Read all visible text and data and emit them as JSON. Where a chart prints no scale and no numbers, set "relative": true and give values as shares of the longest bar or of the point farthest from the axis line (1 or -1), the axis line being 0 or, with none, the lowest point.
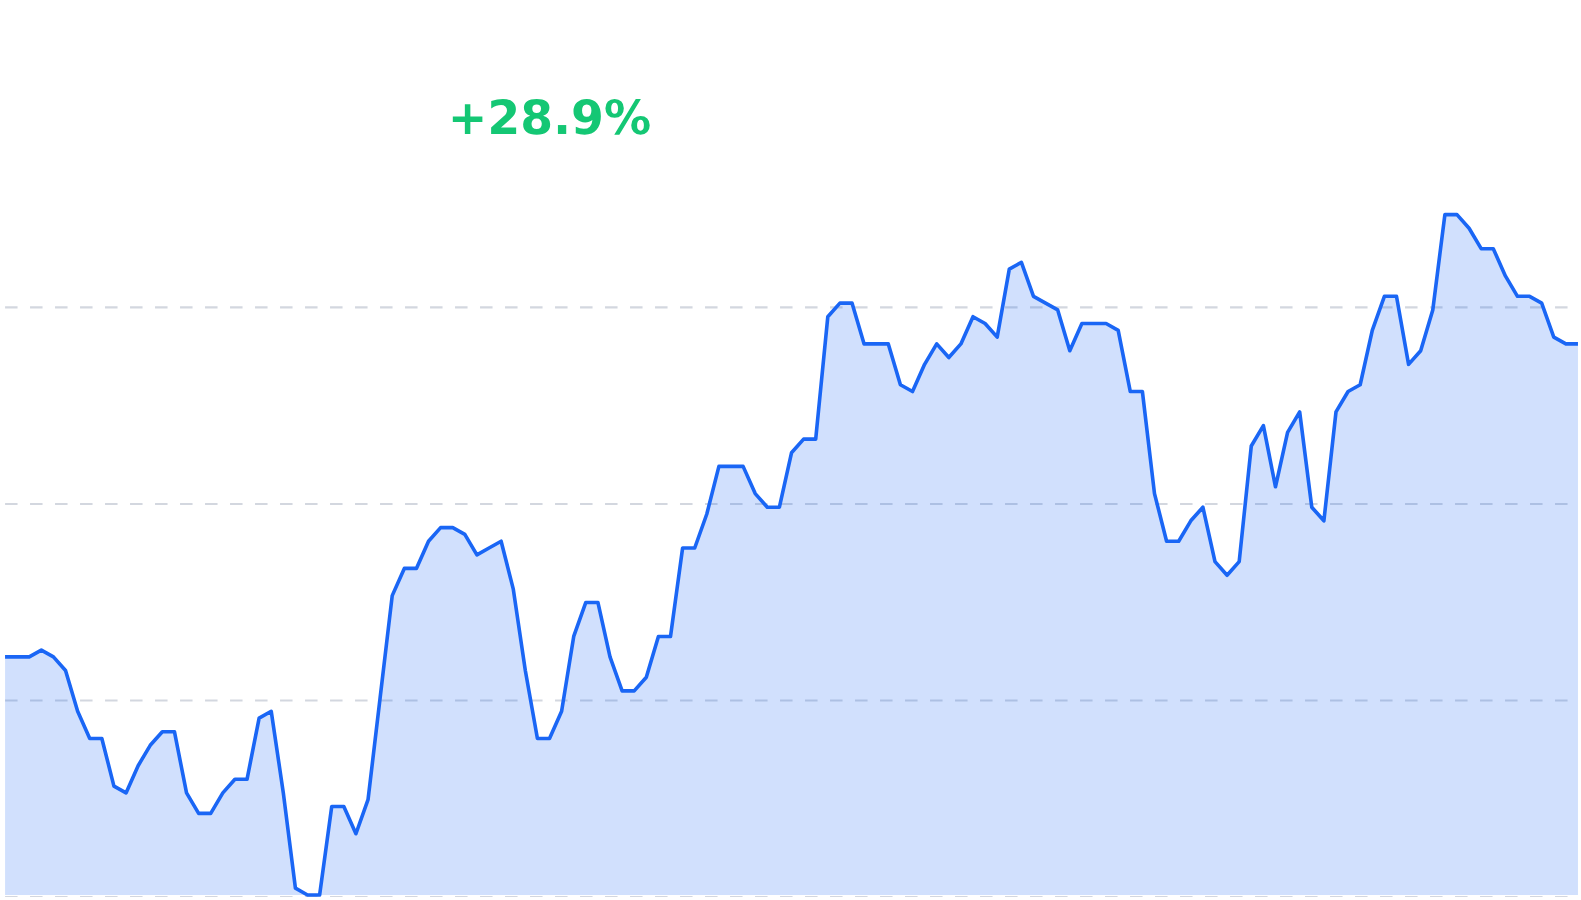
{
  "chart_data": {
    "type": "area",
    "relative": true,
    "grid": "y",
    "line_style": "solid",
    "marker": "none",
    "annotations": [
      "+28.9%"
    ],
    "categories": [
      null,
      null,
      null,
      null,
      null,
      null,
      null,
      null,
      null,
      null,
      null,
      null,
      null,
      null,
      null,
      null,
      null,
      null,
      null,
      null,
      null,
      null,
      null,
      null,
      null,
      null,
      null,
      null,
      null,
      null,
      null,
      null,
      null,
      null,
      null,
      null,
      null,
      null,
      null,
      null,
      null,
      null,
      null,
      null,
      null,
      null,
      null,
      null,
      null,
      null,
      null,
      null,
      null,
      null,
      null,
      null,
      null,
      null,
      null,
      null,
      null,
      null,
      null,
      null,
      null,
      null,
      null,
      null,
      null,
      null,
      null,
      null,
      null,
      null,
      null,
      null,
      null,
      null,
      null,
      null,
      null,
      null,
      null,
      null,
      null,
      null,
      null,
      null,
      null,
      null,
      null,
      null,
      null,
      null,
      null,
      null,
      null,
      null,
      null,
      null,
      null,
      null,
      null,
      null,
      null,
      null,
      null,
      null,
      null,
      null,
      null,
      null,
      null,
      null,
      null,
      null,
      null,
      null,
      null,
      null,
      null,
      null,
      null,
      null,
      null,
      null,
      null,
      null,
      null,
      null,
      null
    ],
    "series": [
      {
        "color": "#1a66f5",
        "values": [
          0.35,
          0.35,
          0.35,
          0.36,
          0.35,
          0.33,
          0.27,
          0.23,
          0.23,
          0.16,
          0.15,
          0.19,
          0.22,
          0.24,
          0.24,
          0.15,
          0.12,
          0.12,
          0.15,
          0.17,
          0.17,
          0.26,
          0.27,
          0.15,
          0.01,
          0.0,
          0.0,
          0.13,
          0.13,
          0.09,
          0.14,
          0.29,
          0.44,
          0.48,
          0.48,
          0.52,
          0.54,
          0.54,
          0.53,
          0.5,
          0.51,
          0.52,
          0.45,
          0.33,
          0.23,
          0.23,
          0.27,
          0.38,
          0.43,
          0.43,
          0.35,
          0.3,
          0.3,
          0.32,
          0.38,
          0.38,
          0.51,
          0.51,
          0.56,
          0.63,
          0.63,
          0.63,
          0.59,
          0.57,
          0.57,
          0.65,
          0.67,
          0.67,
          0.85,
          0.87,
          0.87,
          0.81,
          0.81,
          0.81,
          0.75,
          0.74,
          0.78,
          0.81,
          0.79,
          0.81,
          0.85,
          0.84,
          0.82,
          0.92,
          0.93,
          0.88,
          0.87,
          0.86,
          0.8,
          0.84,
          0.84,
          0.84,
          0.83,
          0.74,
          0.74,
          0.59,
          0.52,
          0.52,
          0.55,
          0.57,
          0.49,
          0.47,
          0.49,
          0.66,
          0.69,
          0.6,
          0.68,
          0.71,
          0.57,
          0.55,
          0.71,
          0.74,
          0.75,
          0.83,
          0.88,
          0.88,
          0.78,
          0.8,
          0.86,
          1.0,
          1.0,
          0.98,
          0.95,
          0.95,
          0.91,
          0.88,
          0.88,
          0.87,
          0.82,
          0.81,
          0.81
        ]
      }
    ]
  }
}
